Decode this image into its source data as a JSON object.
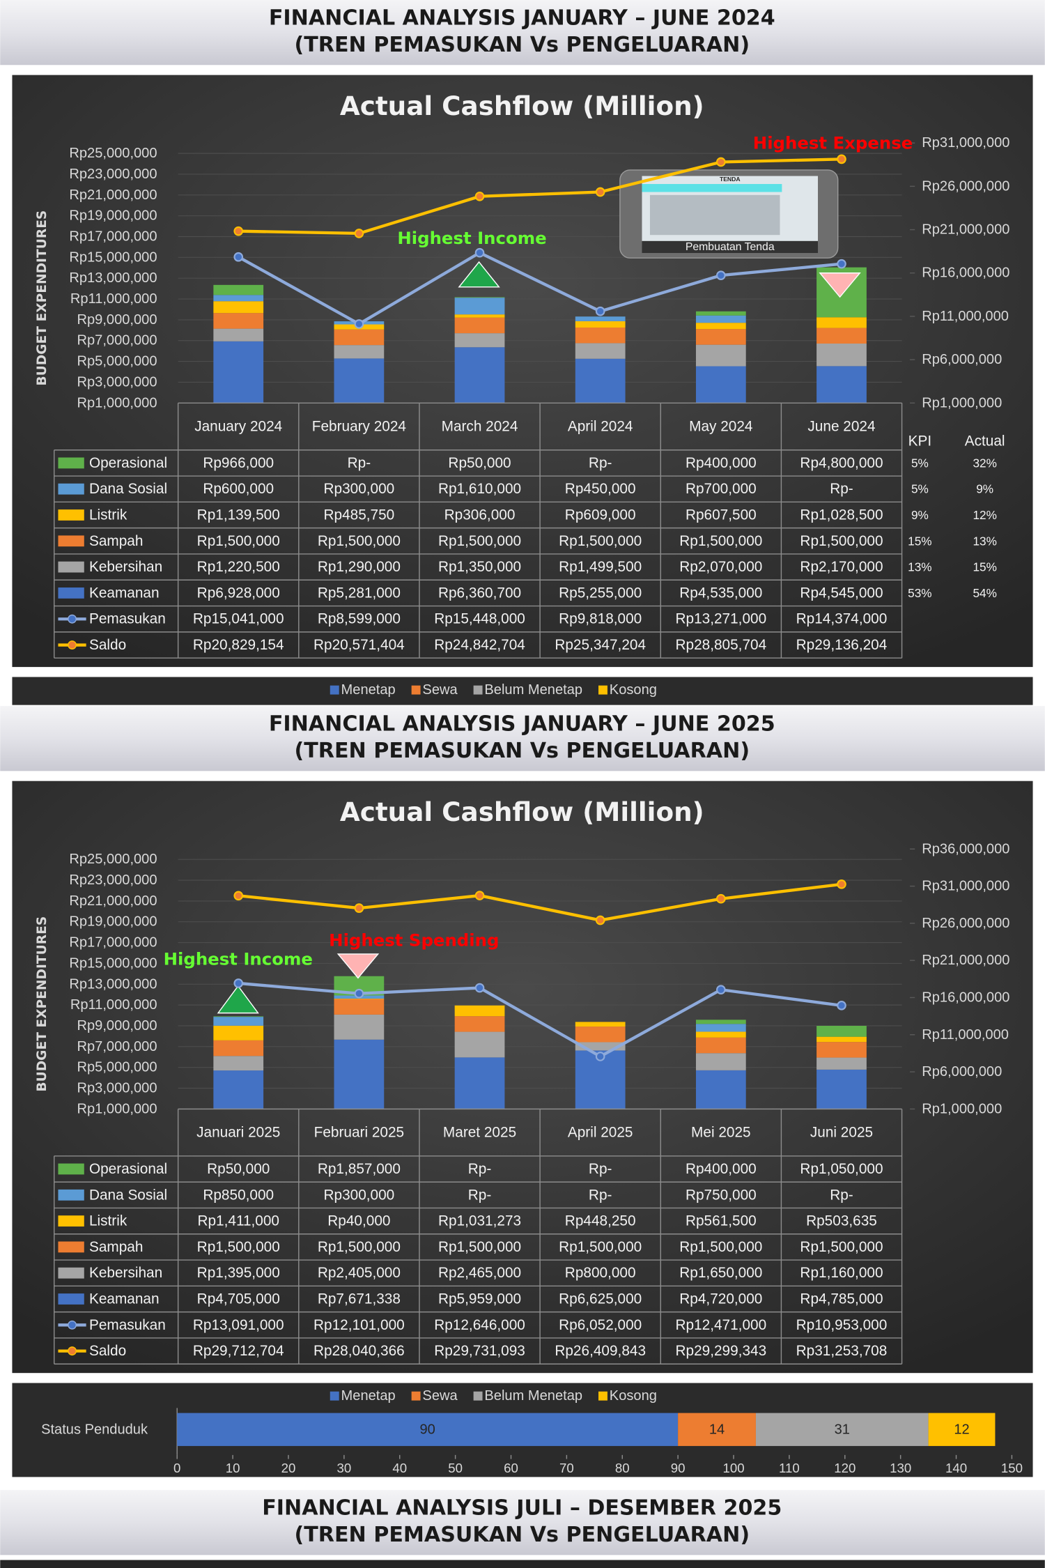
{
  "headers": [
    {
      "title": "FINANCIAL ANALYSIS JANUARY – JUNE 2024",
      "subtitle": "(TREN PEMASUKAN Vs PENGELUARAN)"
    },
    {
      "title": "FINANCIAL ANALYSIS JANUARY – JUNE 2025",
      "subtitle": "(TREN PEMASUKAN Vs PENGELUARAN)"
    },
    {
      "title": "FINANCIAL ANALYSIS JULI – DESEMBER 2025",
      "subtitle": "(TREN PEMASUKAN Vs PENGELUARAN)"
    }
  ],
  "chart_data": [
    {
      "type": "combo",
      "title": "Actual Cashflow (Million)",
      "y_label": "BUDGET EXPENDITURES",
      "categories": [
        "January 2024",
        "February 2024",
        "March 2024",
        "April 2024",
        "May 2024",
        "June 2024"
      ],
      "series": [
        {
          "name": "Operasional",
          "kind": "bar",
          "color": "#5fb14a",
          "values": [
            966000,
            0,
            50000,
            0,
            400000,
            4800000
          ],
          "value_labels": [
            "Rp966,000",
            "Rp-",
            "Rp50,000",
            "Rp-",
            "Rp400,000",
            "Rp4,800,000"
          ]
        },
        {
          "name": "Dana Sosial",
          "kind": "bar",
          "color": "#5b9bd5",
          "values": [
            600000,
            300000,
            1610000,
            450000,
            700000,
            0
          ],
          "value_labels": [
            "Rp600,000",
            "Rp300,000",
            "Rp1,610,000",
            "Rp450,000",
            "Rp700,000",
            "Rp-"
          ]
        },
        {
          "name": "Listrik",
          "kind": "bar",
          "color": "#ffc000",
          "values": [
            1139500,
            485750,
            306000,
            609000,
            607500,
            1028500
          ],
          "value_labels": [
            "Rp1,139,500",
            "Rp485,750",
            "Rp306,000",
            "Rp609,000",
            "Rp607,500",
            "Rp1,028,500"
          ]
        },
        {
          "name": "Sampah",
          "kind": "bar",
          "color": "#ed7d31",
          "values": [
            1500000,
            1500000,
            1500000,
            1500000,
            1500000,
            1500000
          ],
          "value_labels": [
            "Rp1,500,000",
            "Rp1,500,000",
            "Rp1,500,000",
            "Rp1,500,000",
            "Rp1,500,000",
            "Rp1,500,000"
          ]
        },
        {
          "name": "Kebersihan",
          "kind": "bar",
          "color": "#a5a5a5",
          "values": [
            1220500,
            1290000,
            1350000,
            1499500,
            2070000,
            2170000
          ],
          "value_labels": [
            "Rp1,220,500",
            "Rp1,290,000",
            "Rp1,350,000",
            "Rp1,499,500",
            "Rp2,070,000",
            "Rp2,170,000"
          ]
        },
        {
          "name": "Keamanan",
          "kind": "bar",
          "color": "#4472c4",
          "values": [
            6928000,
            5281000,
            6360700,
            5255000,
            4535000,
            4545000
          ],
          "value_labels": [
            "Rp6,928,000",
            "Rp5,281,000",
            "Rp6,360,700",
            "Rp5,255,000",
            "Rp4,535,000",
            "Rp4,545,000"
          ]
        },
        {
          "name": "Pemasukan",
          "kind": "line",
          "axis": "y",
          "color": "#8eaadb",
          "marker_color": "#4472c4",
          "values": [
            15041000,
            8599000,
            15448000,
            9818000,
            13271000,
            14374000
          ],
          "value_labels": [
            "Rp15,041,000",
            "Rp8,599,000",
            "Rp15,448,000",
            "Rp9,818,000",
            "Rp13,271,000",
            "Rp14,374,000"
          ]
        },
        {
          "name": "Saldo",
          "kind": "line",
          "axis": "y2",
          "color": "#ffc000",
          "marker_color": "#ed7d31",
          "values": [
            20829154,
            20571404,
            24842704,
            25347204,
            28805704,
            29136204
          ],
          "value_labels": [
            "Rp20,829,154",
            "Rp20,571,404",
            "Rp24,842,704",
            "Rp25,347,204",
            "Rp28,805,704",
            "Rp29,136,204"
          ]
        }
      ],
      "ylim": [
        1000000,
        26000000
      ],
      "yticks": [
        {
          "value": 1000000,
          "label": "Rp1,000,000"
        },
        {
          "value": 3000000,
          "label": "Rp3,000,000"
        },
        {
          "value": 5000000,
          "label": "Rp5,000,000"
        },
        {
          "value": 7000000,
          "label": "Rp7,000,000"
        },
        {
          "value": 9000000,
          "label": "Rp9,000,000"
        },
        {
          "value": 11000000,
          "label": "Rp11,000,000"
        },
        {
          "value": 13000000,
          "label": "Rp13,000,000"
        },
        {
          "value": 15000000,
          "label": "Rp15,000,000"
        },
        {
          "value": 17000000,
          "label": "Rp17,000,000"
        },
        {
          "value": 19000000,
          "label": "Rp19,000,000"
        },
        {
          "value": 21000000,
          "label": "Rp21,000,000"
        },
        {
          "value": 23000000,
          "label": "Rp23,000,000"
        },
        {
          "value": 25000000,
          "label": "Rp25,000,000"
        }
      ],
      "y2lim": [
        1000000,
        31000000
      ],
      "y2ticks": [
        {
          "value": 1000000,
          "label": "Rp1,000,000"
        },
        {
          "value": 6000000,
          "label": "Rp6,000,000"
        },
        {
          "value": 11000000,
          "label": "Rp11,000,000"
        },
        {
          "value": 16000000,
          "label": "Rp16,000,000"
        },
        {
          "value": 21000000,
          "label": "Rp21,000,000"
        },
        {
          "value": 26000000,
          "label": "Rp26,000,000"
        },
        {
          "value": 31000000,
          "label": "Rp31,000,000"
        }
      ],
      "grid": true,
      "kpi": {
        "header": "KPI",
        "values": [
          "5%",
          "5%",
          "9%",
          "15%",
          "13%",
          "53%"
        ]
      },
      "actual": {
        "header": "Actual",
        "values": [
          "32%",
          "9%",
          "12%",
          "13%",
          "15%",
          "54%"
        ],
        "colors": [
          "#ff0000",
          "#ff0000",
          "#ff0000",
          "#ffffff",
          "#ff0000",
          "#ffffff"
        ]
      },
      "annotations": [
        {
          "text": "Highest Income",
          "color": "#66ff33"
        },
        {
          "text": "Highest Expense",
          "color": "#ff0000"
        }
      ],
      "image_title": "TENDA",
      "image_caption": "Pembuatan Tenda"
    },
    {
      "type": "legend",
      "series": [
        {
          "name": "Menetap",
          "color": "#4472c4"
        },
        {
          "name": "Sewa",
          "color": "#ed7d31"
        },
        {
          "name": "Belum Menetap",
          "color": "#a5a5a5"
        },
        {
          "name": "Kosong",
          "color": "#ffc000"
        }
      ]
    },
    {
      "type": "combo",
      "title": "Actual Cashflow (Million)",
      "y_label": "BUDGET EXPENDITURES",
      "categories": [
        "Januari 2025",
        "Februari 2025",
        "Maret 2025",
        "April 2025",
        "Mei 2025",
        "Juni 2025"
      ],
      "series": [
        {
          "name": "Operasional",
          "kind": "bar",
          "color": "#5fb14a",
          "values": [
            50000,
            1857000,
            0,
            0,
            400000,
            1050000
          ],
          "value_labels": [
            "Rp50,000",
            "Rp1,857,000",
            "Rp-",
            "Rp-",
            "Rp400,000",
            "Rp1,050,000"
          ]
        },
        {
          "name": "Dana Sosial",
          "kind": "bar",
          "color": "#5b9bd5",
          "values": [
            850000,
            300000,
            0,
            0,
            750000,
            0
          ],
          "value_labels": [
            "Rp850,000",
            "Rp300,000",
            "Rp-",
            "Rp-",
            "Rp750,000",
            "Rp-"
          ]
        },
        {
          "name": "Listrik",
          "kind": "bar",
          "color": "#ffc000",
          "values": [
            1411000,
            40000,
            1031273,
            448250,
            561500,
            503635
          ],
          "value_labels": [
            "Rp1,411,000",
            "Rp40,000",
            "Rp1,031,273",
            "Rp448,250",
            "Rp561,500",
            "Rp503,635"
          ]
        },
        {
          "name": "Sampah",
          "kind": "bar",
          "color": "#ed7d31",
          "values": [
            1500000,
            1500000,
            1500000,
            1500000,
            1500000,
            1500000
          ],
          "value_labels": [
            "Rp1,500,000",
            "Rp1,500,000",
            "Rp1,500,000",
            "Rp1,500,000",
            "Rp1,500,000",
            "Rp1,500,000"
          ]
        },
        {
          "name": "Kebersihan",
          "kind": "bar",
          "color": "#a5a5a5",
          "values": [
            1395000,
            2405000,
            2465000,
            800000,
            1650000,
            1160000
          ],
          "value_labels": [
            "Rp1,395,000",
            "Rp2,405,000",
            "Rp2,465,000",
            "Rp800,000",
            "Rp1,650,000",
            "Rp1,160,000"
          ]
        },
        {
          "name": "Keamanan",
          "kind": "bar",
          "color": "#4472c4",
          "values": [
            4705000,
            7671338,
            5959000,
            6625000,
            4720000,
            4785000
          ],
          "value_labels": [
            "Rp4,705,000",
            "Rp7,671,338",
            "Rp5,959,000",
            "Rp6,625,000",
            "Rp4,720,000",
            "Rp4,785,000"
          ]
        },
        {
          "name": "Pemasukan",
          "kind": "line",
          "axis": "y",
          "color": "#8eaadb",
          "marker_color": "#4472c4",
          "values": [
            13091000,
            12101000,
            12646000,
            6052000,
            12471000,
            10953000
          ],
          "value_labels": [
            "Rp13,091,000",
            "Rp12,101,000",
            "Rp12,646,000",
            "Rp6,052,000",
            "Rp12,471,000",
            "Rp10,953,000"
          ]
        },
        {
          "name": "Saldo",
          "kind": "line",
          "axis": "y2",
          "color": "#ffc000",
          "marker_color": "#ed7d31",
          "values": [
            29712704,
            28040366,
            29731093,
            26409843,
            29299343,
            31253708
          ],
          "value_labels": [
            "Rp29,712,704",
            "Rp28,040,366",
            "Rp29,731,093",
            "Rp26,409,843",
            "Rp29,299,343",
            "Rp31,253,708"
          ]
        }
      ],
      "ylim": [
        1000000,
        26000000
      ],
      "yticks": [
        {
          "value": 1000000,
          "label": "Rp1,000,000"
        },
        {
          "value": 3000000,
          "label": "Rp3,000,000"
        },
        {
          "value": 5000000,
          "label": "Rp5,000,000"
        },
        {
          "value": 7000000,
          "label": "Rp7,000,000"
        },
        {
          "value": 9000000,
          "label": "Rp9,000,000"
        },
        {
          "value": 11000000,
          "label": "Rp11,000,000"
        },
        {
          "value": 13000000,
          "label": "Rp13,000,000"
        },
        {
          "value": 15000000,
          "label": "Rp15,000,000"
        },
        {
          "value": 17000000,
          "label": "Rp17,000,000"
        },
        {
          "value": 19000000,
          "label": "Rp19,000,000"
        },
        {
          "value": 21000000,
          "label": "Rp21,000,000"
        },
        {
          "value": 23000000,
          "label": "Rp23,000,000"
        },
        {
          "value": 25000000,
          "label": "Rp25,000,000"
        }
      ],
      "y2lim": [
        1000000,
        36000000
      ],
      "y2ticks": [
        {
          "value": 1000000,
          "label": "Rp1,000,000"
        },
        {
          "value": 6000000,
          "label": "Rp6,000,000"
        },
        {
          "value": 11000000,
          "label": "Rp11,000,000"
        },
        {
          "value": 16000000,
          "label": "Rp16,000,000"
        },
        {
          "value": 21000000,
          "label": "Rp21,000,000"
        },
        {
          "value": 26000000,
          "label": "Rp26,000,000"
        },
        {
          "value": 31000000,
          "label": "Rp31,000,000"
        },
        {
          "value": 36000000,
          "label": "Rp36,000,000"
        }
      ],
      "grid": true,
      "annotations": [
        {
          "text": "Highest Income",
          "color": "#66ff33"
        },
        {
          "text": "Highest Spending",
          "color": "#ff0000"
        }
      ]
    },
    {
      "type": "hbar",
      "categories": [
        "Status Penduduk"
      ],
      "series": [
        {
          "name": "Menetap",
          "color": "#4472c4",
          "values": [
            90
          ]
        },
        {
          "name": "Sewa",
          "color": "#ed7d31",
          "values": [
            14
          ]
        },
        {
          "name": "Belum Menetap",
          "color": "#a5a5a5",
          "values": [
            31
          ]
        },
        {
          "name": "Kosong",
          "color": "#ffc000",
          "values": [
            12
          ]
        }
      ],
      "xlim": [
        0,
        150
      ],
      "xticks": [
        0,
        10,
        20,
        30,
        40,
        50,
        60,
        70,
        80,
        90,
        100,
        110,
        120,
        130,
        140,
        150
      ]
    }
  ]
}
